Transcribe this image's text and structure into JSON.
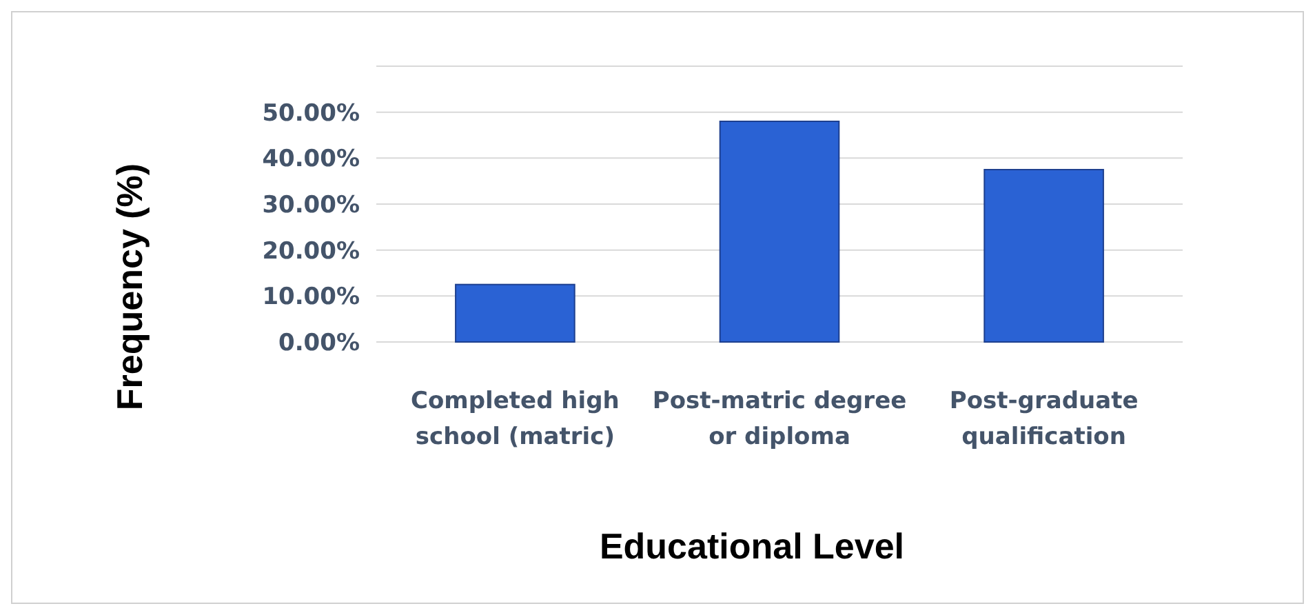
{
  "chart_data": {
    "type": "bar",
    "xlabel": "Educational Level",
    "ylabel": "Frequency (%)",
    "categories": [
      "Completed high school (matric)",
      "Post-matric degree or diploma",
      "Post-graduate qualification"
    ],
    "values": [
      12.5,
      48,
      37.5
    ],
    "color": "#2a62d4",
    "ylim": [
      0,
      60
    ],
    "yticks": [
      {
        "value": 0,
        "label": "0.00%"
      },
      {
        "value": 10,
        "label": "10.00%"
      },
      {
        "value": 20,
        "label": "20.00%"
      },
      {
        "value": 30,
        "label": "30.00%"
      },
      {
        "value": 40,
        "label": "40.00%"
      },
      {
        "value": 50,
        "label": "50.00%"
      },
      {
        "value": 60,
        "label": null
      }
    ],
    "grid": "y"
  }
}
